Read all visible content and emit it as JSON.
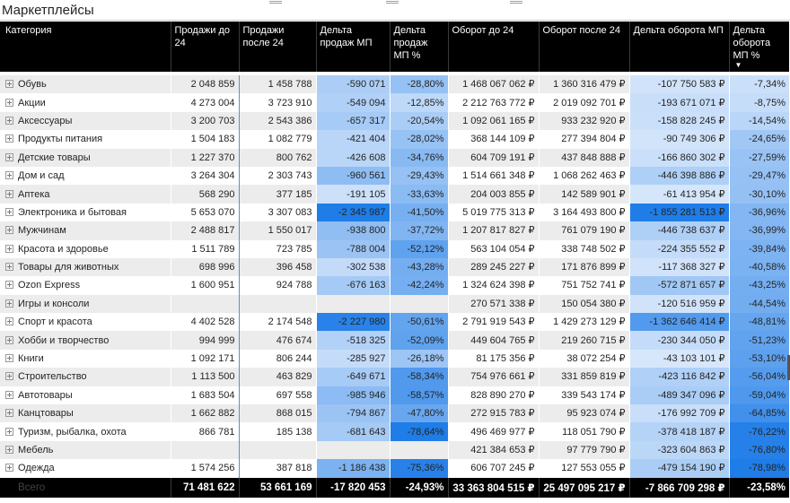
{
  "visual": {
    "title": "Маркетплейсы"
  },
  "columns": [
    "Категория",
    "Продажи до 24",
    "Продажи после 24",
    "Дельта продаж МП",
    "Дельта продаж МП %",
    "Оборот до 24",
    "Оборот после 24",
    "Дельта оборота МП",
    "Дельта оборота МП %"
  ],
  "rows": [
    {
      "cat": "Обувь",
      "s24": "2 048 859",
      "sa24": "1 458 788",
      "ds": "-590 071",
      "dsp": "-28,80%",
      "o24": "1 468 067 062 ₽",
      "oa24": "1 360 316 479 ₽",
      "do": "-107 750 583 ₽",
      "dop": "-7,34%",
      "lvl": {
        "ds": 0.25,
        "dsp": 0.37,
        "do": 0.06,
        "dop": 0.09
      }
    },
    {
      "cat": "Акции",
      "s24": "4 273 004",
      "sa24": "3 723 910",
      "ds": "-549 094",
      "dsp": "-12,85%",
      "o24": "2 212 763 772 ₽",
      "oa24": "2 019 092 701 ₽",
      "do": "-193 671 071 ₽",
      "dop": "-8,75%",
      "lvl": {
        "ds": 0.23,
        "dsp": 0.16,
        "do": 0.1,
        "dop": 0.11
      }
    },
    {
      "cat": "Аксессуары",
      "s24": "3 200 703",
      "sa24": "2 543 386",
      "ds": "-657 317",
      "dsp": "-20,54%",
      "o24": "1 092 061 165 ₽",
      "oa24": "933 232 920 ₽",
      "do": "-158 828 245 ₽",
      "dop": "-14,54%",
      "lvl": {
        "ds": 0.28,
        "dsp": 0.26,
        "do": 0.09,
        "dop": 0.18
      }
    },
    {
      "cat": "Продукты питания",
      "s24": "1 504 183",
      "sa24": "1 082 779",
      "ds": "-421 404",
      "dsp": "-28,02%",
      "o24": "368 144 109 ₽",
      "oa24": "277 394 804 ₽",
      "do": "-90 749 306 ₽",
      "dop": "-24,65%",
      "lvl": {
        "ds": 0.18,
        "dsp": 0.36,
        "do": 0.05,
        "dop": 0.31
      }
    },
    {
      "cat": "Детские товары",
      "s24": "1 227 370",
      "sa24": "800 762",
      "ds": "-426 608",
      "dsp": "-34,76%",
      "o24": "604 709 191 ₽",
      "oa24": "437 848 888 ₽",
      "do": "-166 860 302 ₽",
      "dop": "-27,59%",
      "lvl": {
        "ds": 0.18,
        "dsp": 0.44,
        "do": 0.09,
        "dop": 0.35
      }
    },
    {
      "cat": "Дом и сад",
      "s24": "3 264 304",
      "sa24": "2 303 743",
      "ds": "-960 561",
      "dsp": "-29,43%",
      "o24": "1 514 661 348 ₽",
      "oa24": "1 068 262 463 ₽",
      "do": "-446 398 886 ₽",
      "dop": "-29,47%",
      "lvl": {
        "ds": 0.41,
        "dsp": 0.37,
        "do": 0.24,
        "dop": 0.37
      }
    },
    {
      "cat": "Аптека",
      "s24": "568 290",
      "sa24": "377 185",
      "ds": "-191 105",
      "dsp": "-33,63%",
      "o24": "204 003 855 ₽",
      "oa24": "142 589 901 ₽",
      "do": "-61 413 954 ₽",
      "dop": "-30,10%",
      "lvl": {
        "ds": 0.08,
        "dsp": 0.43,
        "do": 0.03,
        "dop": 0.38
      }
    },
    {
      "cat": "Электроника и бытовая",
      "s24": "5 653 070",
      "sa24": "3 307 083",
      "ds": "-2 345 987",
      "dsp": "-41,50%",
      "o24": "5 019 775 313 ₽",
      "oa24": "3 164 493 800 ₽",
      "do": "-1 855 281 513 ₽",
      "dop": "-36,96%",
      "lvl": {
        "ds": 1.0,
        "dsp": 0.53,
        "do": 1.0,
        "dop": 0.47
      }
    },
    {
      "cat": "Мужчинам",
      "s24": "2 488 817",
      "sa24": "1 550 017",
      "ds": "-938 800",
      "dsp": "-37,72%",
      "o24": "1 207 817 827 ₽",
      "oa24": "761 079 190 ₽",
      "do": "-446 738 637 ₽",
      "dop": "-36,99%",
      "lvl": {
        "ds": 0.4,
        "dsp": 0.48,
        "do": 0.24,
        "dop": 0.47
      }
    },
    {
      "cat": "Красота и здоровье",
      "s24": "1 511 789",
      "sa24": "723 785",
      "ds": "-788 004",
      "dsp": "-52,12%",
      "o24": "563 104 054 ₽",
      "oa24": "338 748 502 ₽",
      "do": "-224 355 552 ₽",
      "dop": "-39,84%",
      "lvl": {
        "ds": 0.34,
        "dsp": 0.66,
        "do": 0.12,
        "dop": 0.5
      }
    },
    {
      "cat": "Товары для животных",
      "s24": "698 996",
      "sa24": "396 458",
      "ds": "-302 538",
      "dsp": "-43,28%",
      "o24": "289 245 227 ₽",
      "oa24": "171 876 899 ₽",
      "do": "-117 368 327 ₽",
      "dop": "-40,58%",
      "lvl": {
        "ds": 0.13,
        "dsp": 0.55,
        "do": 0.06,
        "dop": 0.51
      }
    },
    {
      "cat": "Ozon Express",
      "s24": "1 600 951",
      "sa24": "924 788",
      "ds": "-676 163",
      "dsp": "-42,24%",
      "o24": "1 324 624 398 ₽",
      "oa24": "751 752 741 ₽",
      "do": "-572 871 657 ₽",
      "dop": "-43,25%",
      "lvl": {
        "ds": 0.29,
        "dsp": 0.54,
        "do": 0.31,
        "dop": 0.55
      }
    },
    {
      "cat": "Игры и консоли",
      "s24": "",
      "sa24": "",
      "ds": "",
      "dsp": "",
      "o24": "270 571 338 ₽",
      "oa24": "150 054 380 ₽",
      "do": "-120 516 959 ₽",
      "dop": "-44,54%",
      "lvl": {
        "ds": null,
        "dsp": null,
        "do": 0.06,
        "dop": 0.56
      }
    },
    {
      "cat": "Спорт и красота",
      "s24": "4 402 528",
      "sa24": "2 174 548",
      "ds": "-2 227 980",
      "dsp": "-50,61%",
      "o24": "2 791 919 543 ₽",
      "oa24": "1 429 273 129 ₽",
      "do": "-1 362 646 414 ₽",
      "dop": "-48,81%",
      "lvl": {
        "ds": 0.95,
        "dsp": 0.64,
        "do": 0.73,
        "dop": 0.62
      }
    },
    {
      "cat": "Хобби и творчество",
      "s24": "994 999",
      "sa24": "476 674",
      "ds": "-518 325",
      "dsp": "-52,09%",
      "o24": "449 604 765 ₽",
      "oa24": "219 260 715 ₽",
      "do": "-230 344 050 ₽",
      "dop": "-51,23%",
      "lvl": {
        "ds": 0.22,
        "dsp": 0.66,
        "do": 0.12,
        "dop": 0.65
      }
    },
    {
      "cat": "Книги",
      "s24": "1 092 171",
      "sa24": "806 244",
      "ds": "-285 927",
      "dsp": "-26,18%",
      "o24": "81 175 356 ₽",
      "oa24": "38 072 254 ₽",
      "do": "-43 103 101 ₽",
      "dop": "-53,10%",
      "lvl": {
        "ds": 0.12,
        "dsp": 0.33,
        "do": 0.02,
        "dop": 0.67
      }
    },
    {
      "cat": "Строительство",
      "s24": "1 113 500",
      "sa24": "463 829",
      "ds": "-649 671",
      "dsp": "-58,34%",
      "o24": "754 976 661 ₽",
      "oa24": "331 859 819 ₽",
      "do": "-423 116 842 ₽",
      "dop": "-56,04%",
      "lvl": {
        "ds": 0.28,
        "dsp": 0.74,
        "do": 0.23,
        "dop": 0.71
      }
    },
    {
      "cat": "Автотовары",
      "s24": "1 683 504",
      "sa24": "697 558",
      "ds": "-985 946",
      "dsp": "-58,57%",
      "o24": "828 890 270 ₽",
      "oa24": "339 543 174 ₽",
      "do": "-489 347 096 ₽",
      "dop": "-59,04%",
      "lvl": {
        "ds": 0.42,
        "dsp": 0.74,
        "do": 0.26,
        "dop": 0.75
      }
    },
    {
      "cat": "Канцтовары",
      "s24": "1 662 882",
      "sa24": "868 015",
      "ds": "-794 867",
      "dsp": "-47,80%",
      "o24": "272 915 783 ₽",
      "oa24": "95 923 074 ₽",
      "do": "-176 992 709 ₽",
      "dop": "-64,85%",
      "lvl": {
        "ds": 0.34,
        "dsp": 0.61,
        "do": 0.1,
        "dop": 0.82
      }
    },
    {
      "cat": "Туризм, рыбалка, охота",
      "s24": "866 781",
      "sa24": "185 138",
      "ds": "-681 643",
      "dsp": "-78,64%",
      "o24": "496 469 977 ₽",
      "oa24": "118 051 790 ₽",
      "do": "-378 418 187 ₽",
      "dop": "-76,22%",
      "lvl": {
        "ds": 0.29,
        "dsp": 1.0,
        "do": 0.2,
        "dop": 0.97
      }
    },
    {
      "cat": "Мебель",
      "s24": "",
      "sa24": "",
      "ds": "",
      "dsp": "",
      "o24": "421 384 653 ₽",
      "oa24": "97 779 790 ₽",
      "do": "-323 604 863 ₽",
      "dop": "-76,80%",
      "lvl": {
        "ds": null,
        "dsp": null,
        "do": 0.17,
        "dop": 0.97
      }
    },
    {
      "cat": "Одежда",
      "s24": "1 574 256",
      "sa24": "387 818",
      "ds": "-1 186 438",
      "dsp": "-75,36%",
      "o24": "606 707 245 ₽",
      "oa24": "127 553 055 ₽",
      "do": "-479 154 190 ₽",
      "dop": "-78,98%",
      "lvl": {
        "ds": 0.51,
        "dsp": 0.96,
        "do": 0.26,
        "dop": 1.0
      }
    }
  ],
  "total": {
    "cat": "Всего",
    "s24": "71 481 622",
    "sa24": "53 661 169",
    "ds": "-17 820 453",
    "dsp": "-24,93%",
    "o24": "33 363 804 515 ₽",
    "oa24": "25 497 095 217 ₽",
    "do": "-7 866 709 298 ₽",
    "dop": "-23,58%"
  },
  "colors": {
    "scale_light": "#dbe9fb",
    "scale_dark": "#1f7de8",
    "header_bg": "#000000"
  }
}
